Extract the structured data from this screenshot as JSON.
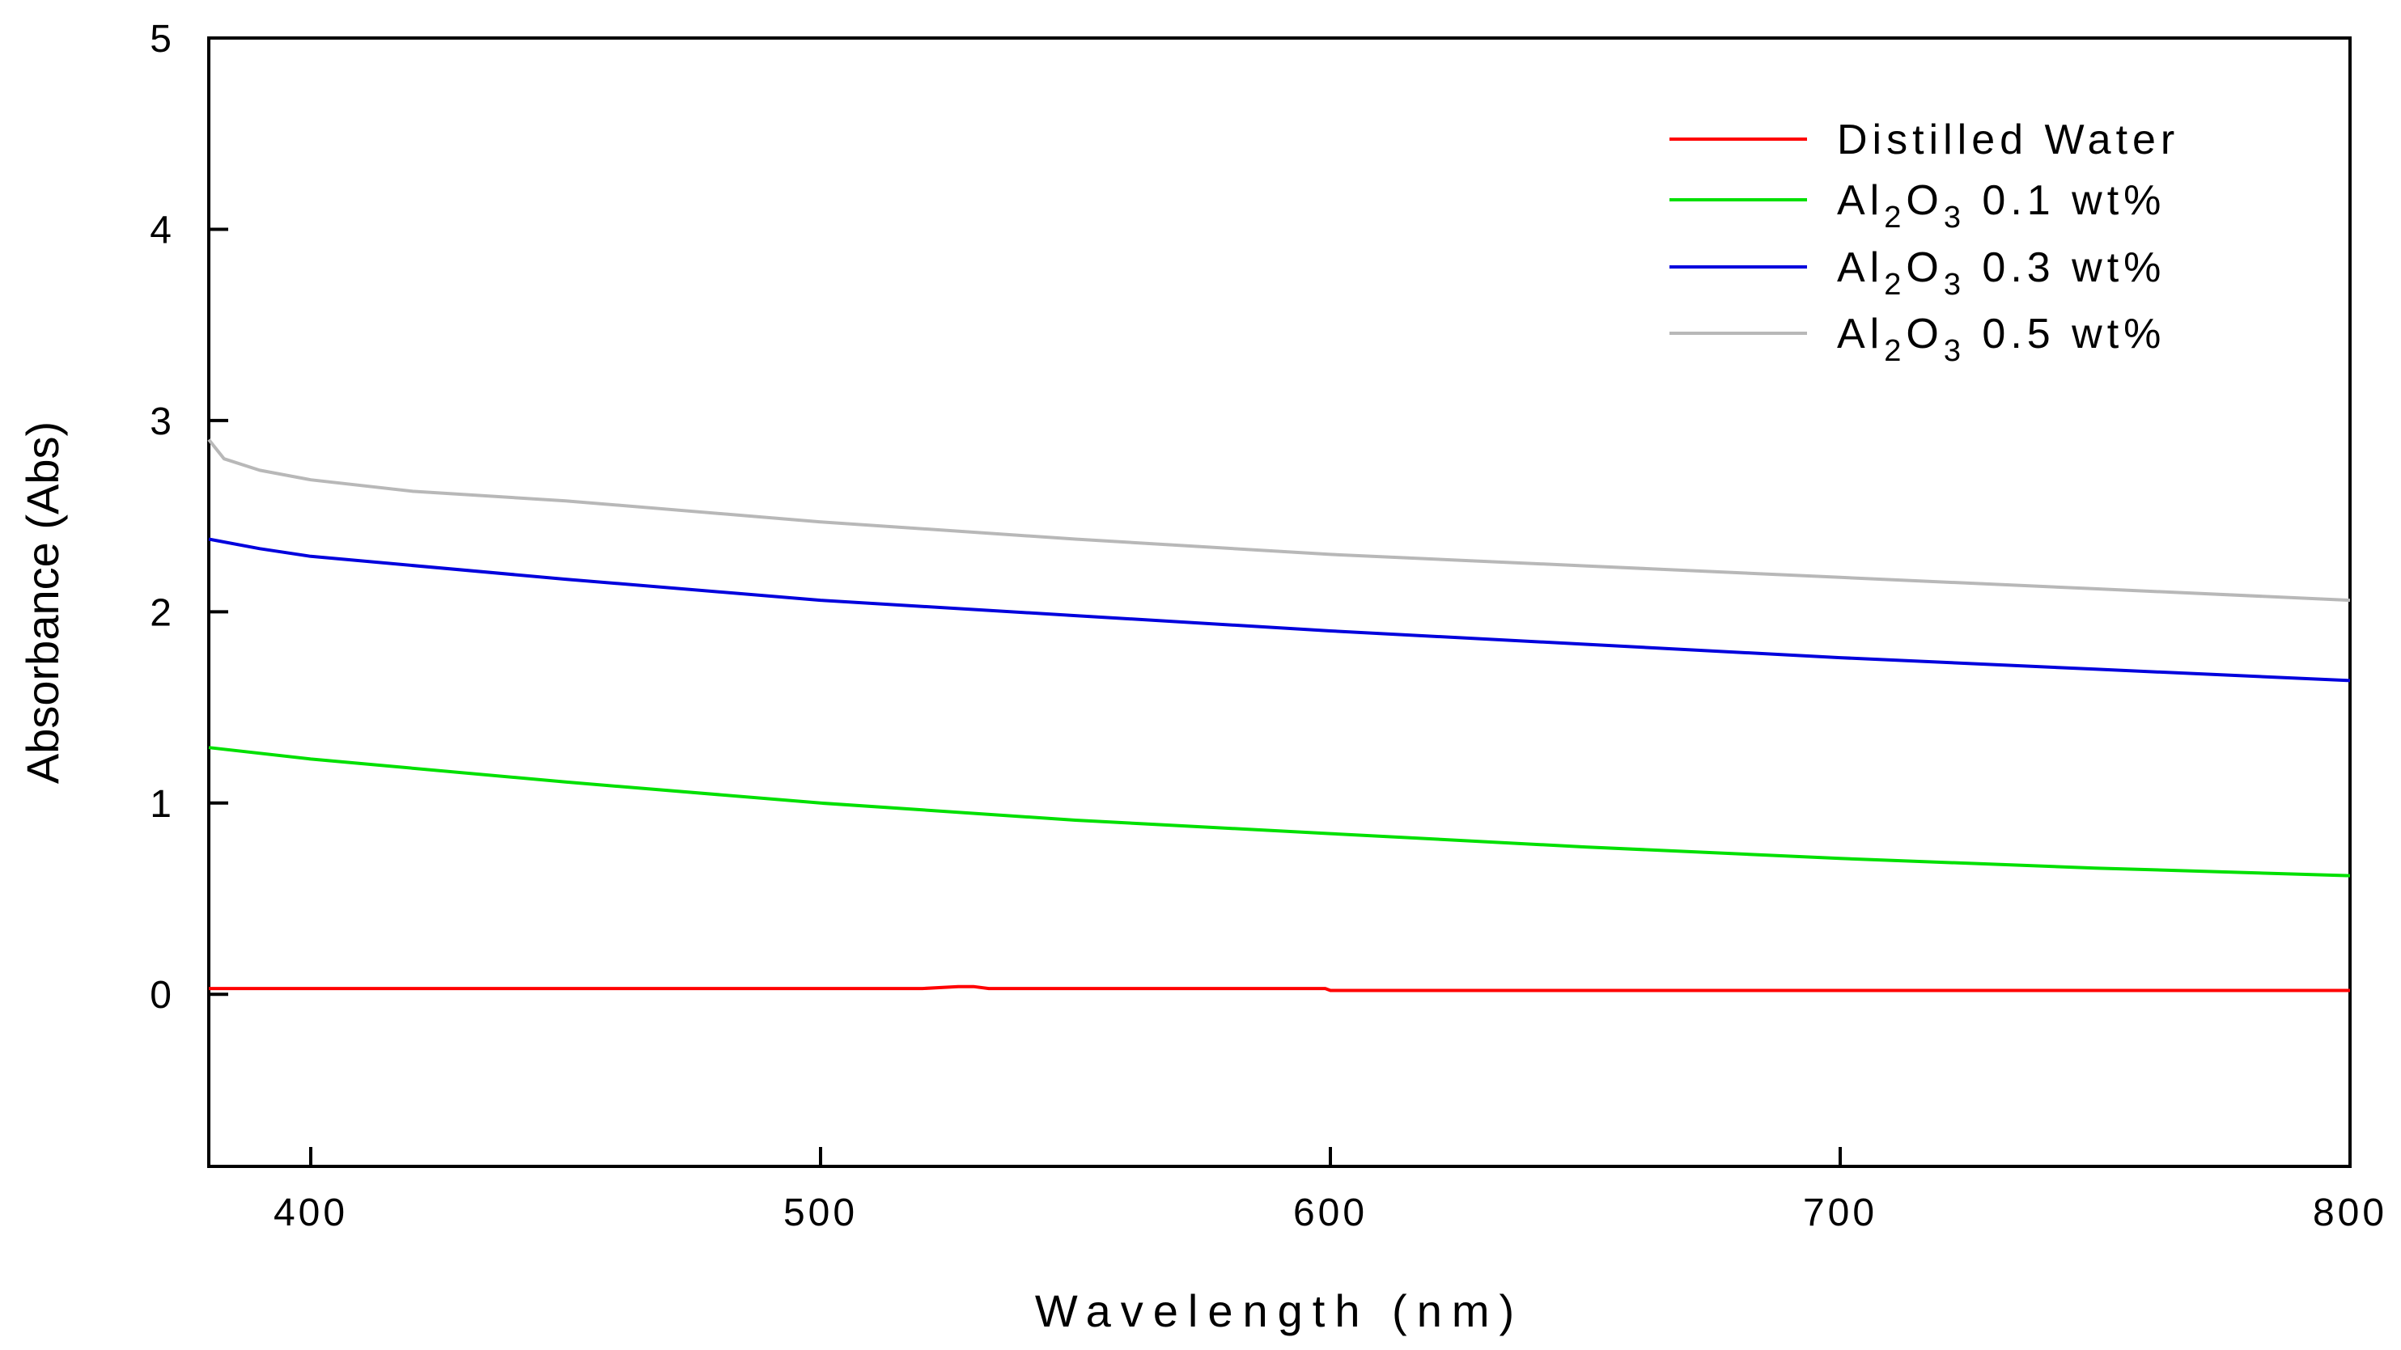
{
  "chart_data": {
    "type": "line",
    "xlabel": "Wavelength (nm)",
    "ylabel": "Absorbance (Abs)",
    "xlim": [
      380,
      800
    ],
    "ylim": [
      -0.9,
      5
    ],
    "x_ticks": [
      "400",
      "500",
      "600",
      "700",
      "800"
    ],
    "y_ticks": [
      "0",
      "1",
      "2",
      "3",
      "4",
      "5"
    ],
    "grid": false,
    "legend_position": "top-right",
    "series": [
      {
        "name": "Distilled Water",
        "color": "#ff0000",
        "x": [
          380,
          400,
          450,
          500,
          520,
          527,
          530,
          533,
          550,
          599,
          600,
          650,
          700,
          750,
          800
        ],
        "y": [
          0.03,
          0.03,
          0.03,
          0.03,
          0.03,
          0.04,
          0.04,
          0.03,
          0.03,
          0.03,
          0.02,
          0.02,
          0.02,
          0.02,
          0.02
        ]
      },
      {
        "name_parts": [
          "Al",
          "2",
          "O",
          "3",
          " 0.1 wt%"
        ],
        "color": "#00e000",
        "x": [
          380,
          400,
          450,
          500,
          550,
          600,
          650,
          700,
          750,
          800
        ],
        "y": [
          1.29,
          1.23,
          1.11,
          1.0,
          0.91,
          0.84,
          0.77,
          0.71,
          0.66,
          0.62
        ]
      },
      {
        "name_parts": [
          "Al",
          "2",
          "O",
          "3",
          " 0.3 wt%"
        ],
        "color": "#0000dd",
        "x": [
          380,
          390,
          400,
          450,
          500,
          550,
          600,
          650,
          700,
          750,
          800
        ],
        "y": [
          2.38,
          2.33,
          2.29,
          2.17,
          2.06,
          1.98,
          1.9,
          1.83,
          1.76,
          1.7,
          1.64
        ]
      },
      {
        "name_parts": [
          "Al",
          "2",
          "O",
          "3",
          " 0.5 wt%"
        ],
        "color": "#b8b8b8",
        "x": [
          380,
          383,
          390,
          400,
          420,
          450,
          500,
          550,
          600,
          650,
          700,
          750,
          800
        ],
        "y": [
          2.9,
          2.8,
          2.74,
          2.69,
          2.63,
          2.58,
          2.47,
          2.38,
          2.3,
          2.24,
          2.18,
          2.12,
          2.06
        ]
      }
    ]
  }
}
